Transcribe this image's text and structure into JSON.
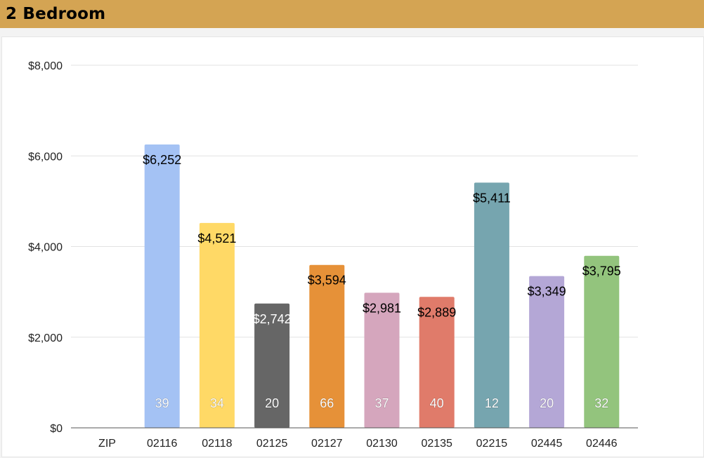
{
  "header": {
    "title": "2 Bedroom"
  },
  "chart_data": {
    "type": "bar",
    "title": "",
    "xlabel": "",
    "ylabel": "",
    "ylim": [
      0,
      8000
    ],
    "yticks": [
      "$0",
      "$2,000",
      "$4,000",
      "$6,000",
      "$8,000"
    ],
    "ytick_values": [
      0,
      2000,
      4000,
      6000,
      8000
    ],
    "categories": [
      "ZIP",
      "02116",
      "02118",
      "02125",
      "02127",
      "02130",
      "02135",
      "02215",
      "02445",
      "02446"
    ],
    "values": [
      null,
      6252,
      4521,
      2742,
      3594,
      2981,
      2889,
      5411,
      3349,
      3795
    ],
    "value_labels": [
      "",
      "$6,252",
      "$4,521",
      "$2,742",
      "$3,594",
      "$2,981",
      "$2,889",
      "$5,411",
      "$3,349",
      "$3,795"
    ],
    "counts": [
      "",
      "39",
      "34",
      "20",
      "66",
      "37",
      "40",
      "12",
      "20",
      "32"
    ],
    "colors": [
      "",
      "#a4c2f4",
      "#ffd966",
      "#666666",
      "#e69138",
      "#d5a6bd",
      "#e07b6a",
      "#76a5af",
      "#b4a7d6",
      "#93c47d"
    ],
    "label_colors": [
      "",
      "#000000",
      "#000000",
      "#ffffff",
      "#000000",
      "#000000",
      "#000000",
      "#000000",
      "#000000",
      "#000000"
    ],
    "grid": true,
    "legend": "none"
  }
}
